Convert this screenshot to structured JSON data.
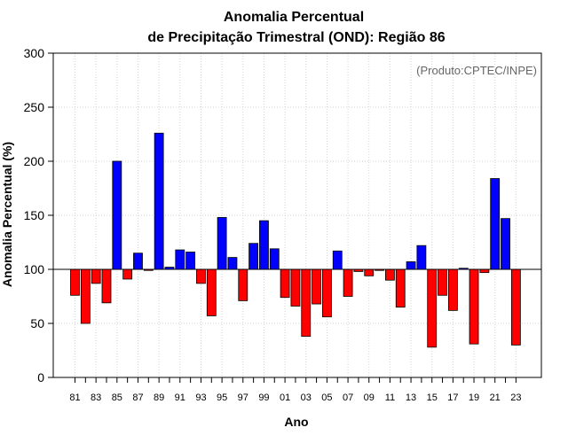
{
  "chart_data": {
    "type": "bar",
    "title_line1": "Anomalia Percentual",
    "title_line2": "de Precipitação Trimestral (OND): Região 86",
    "xlabel": "Ano",
    "ylabel": "Anomalia Percentual (%)",
    "source": "(Produto:CPTEC/INPE)",
    "baseline": 100,
    "ylim": [
      0,
      300
    ],
    "yticks": [
      0,
      50,
      100,
      150,
      200,
      250,
      300
    ],
    "xtick_labels": [
      "81",
      "83",
      "85",
      "87",
      "89",
      "91",
      "93",
      "95",
      "97",
      "99",
      "01",
      "03",
      "05",
      "07",
      "09",
      "11",
      "13",
      "15",
      "17",
      "19",
      "21",
      "23"
    ],
    "grid": true,
    "colors": {
      "above": "#0000ff",
      "below": "#ff0000",
      "outline": "#000000",
      "grid": "#d3d3d3"
    },
    "categories": [
      "1981",
      "1982",
      "1983",
      "1984",
      "1985",
      "1986",
      "1987",
      "1988",
      "1989",
      "1990",
      "1991",
      "1992",
      "1993",
      "1994",
      "1995",
      "1996",
      "1997",
      "1998",
      "1999",
      "2000",
      "2001",
      "2002",
      "2003",
      "2004",
      "2005",
      "2006",
      "2007",
      "2008",
      "2009",
      "2010",
      "2011",
      "2012",
      "2013",
      "2014",
      "2015",
      "2016",
      "2017",
      "2018",
      "2019",
      "2020",
      "2021",
      "2022",
      "2023"
    ],
    "values": [
      76,
      50,
      87,
      69,
      200,
      91,
      115,
      99,
      226,
      102,
      118,
      116,
      87,
      57,
      148,
      111,
      71,
      124,
      145,
      119,
      74,
      66,
      38,
      68,
      56,
      117,
      75,
      98,
      94,
      99,
      90,
      65,
      107,
      122,
      28,
      76,
      62,
      101,
      31,
      97,
      184,
      147,
      30
    ]
  }
}
